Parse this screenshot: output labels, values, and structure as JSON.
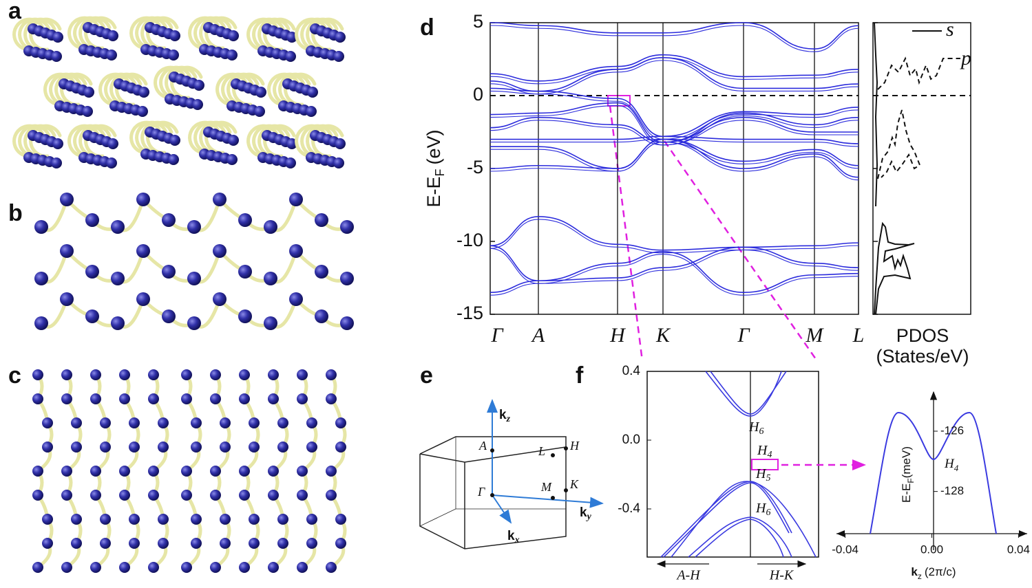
{
  "panel_labels": [
    "a",
    "b",
    "c",
    "d",
    "e",
    "f"
  ],
  "band_structure": {
    "ylabel": "E-E",
    "ylabel_sub": "F",
    "ylabel_unit": "(eV)",
    "ylim": [
      -15,
      5
    ],
    "yticks": [
      5,
      0,
      -5,
      -10,
      -15
    ],
    "kpoints": [
      "Γ",
      "A",
      "H",
      "K",
      "Γ",
      "M",
      "L"
    ],
    "color": "#2b2bdc",
    "bands": [
      [
        -13.5,
        -12.7,
        -11.5,
        -10.7,
        -13.5,
        -12.3,
        -12.2
      ],
      [
        -10.3,
        -12.7,
        -12.5,
        -11.8,
        -10.4,
        -11.5,
        -11.8
      ],
      [
        -10.3,
        -8.3,
        -10.2,
        -10.6,
        -10.4,
        -10.3,
        -10.1
      ],
      [
        -5.0,
        -4.8,
        -5.0,
        -3.0,
        -5.0,
        -4.0,
        -5.6
      ],
      [
        -3.5,
        -3.5,
        -5.0,
        -3.0,
        -4.5,
        -3.7,
        -4.8
      ],
      [
        -3.0,
        -3.0,
        -3.0,
        -2.8,
        -3.0,
        -3.0,
        -3.3
      ],
      [
        -2.2,
        -1.5,
        -2.0,
        -3.2,
        -1.5,
        -2.5,
        -2.5
      ],
      [
        -1.3,
        -1.2,
        -0.5,
        -3.2,
        -1.2,
        -2.0,
        -1.5
      ],
      [
        0.5,
        0.3,
        -0.2,
        -2.8,
        -1.1,
        -1.3,
        -0.8
      ],
      [
        1.0,
        0.3,
        1.8,
        2.6,
        0.5,
        0.5,
        0.8
      ],
      [
        1.5,
        1.0,
        2.0,
        2.8,
        1.3,
        1.4,
        1.8
      ],
      [
        5.0,
        4.8,
        4.3,
        4.3,
        5.0,
        3.2,
        4.8
      ]
    ]
  },
  "pdos": {
    "xlabel": "PDOS",
    "xunit": "(States/eV)",
    "legend": [
      "s",
      "p"
    ]
  },
  "brillouin_zone": {
    "kz": "k",
    "kz_sub": "z",
    "kx": "k",
    "kx_sub": "x",
    "ky": "k",
    "ky_sub": "y",
    "points": [
      "A",
      "L",
      "H",
      "Γ",
      "M",
      "K"
    ]
  },
  "zoom": {
    "ylim": [
      -0.68,
      0.4
    ],
    "yticks": [
      0.4,
      {
        "value": 0.0,
        "label": "0.0"
      },
      -0.4
    ],
    "states": [
      [
        "H",
        "6"
      ],
      [
        "H",
        "4"
      ],
      [
        "H",
        "5"
      ],
      [
        "H",
        "6"
      ]
    ],
    "directions": [
      "A-H",
      "H-K"
    ]
  },
  "inset": {
    "xlim": [
      -0.044,
      0.044
    ],
    "xticks": [
      -0.04,
      {
        "value": 0,
        "label": "0.00"
      },
      0.04
    ],
    "ylim": [
      -129.4,
      -124.7
    ],
    "yticks": [
      -126,
      -128
    ],
    "ylabel": "E-E",
    "ylabel_sub": "F",
    "ylabel_unit": "(meV)",
    "xlabel": "k",
    "xlabel_sub": "z",
    "xlabel_unit": "(2π/c)",
    "point": "H",
    "point_sub": "4"
  }
}
